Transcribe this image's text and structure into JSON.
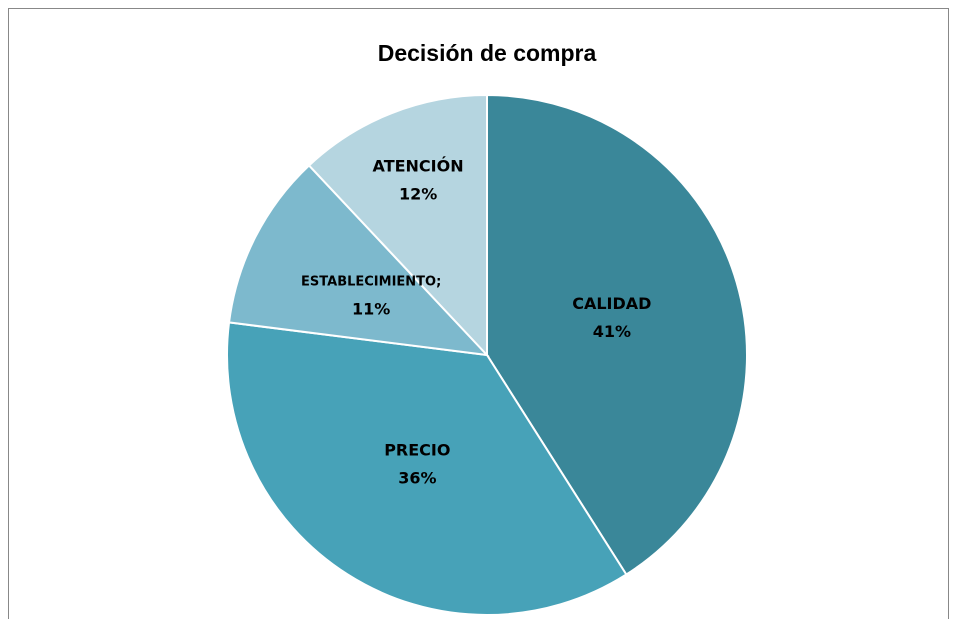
{
  "chart_data": {
    "type": "pie",
    "title": "Decisión de compra",
    "categories": [
      "CALIDAD",
      "PRECIO",
      "ESTABLECIMIENTO;",
      "ATENCIÓN"
    ],
    "values": [
      41,
      36,
      11,
      12
    ],
    "value_labels": [
      "41%",
      "36%",
      "11%",
      "12%"
    ],
    "colors": [
      "#3a8799",
      "#47a2b8",
      "#7db9cd",
      "#b5d5e0"
    ]
  }
}
